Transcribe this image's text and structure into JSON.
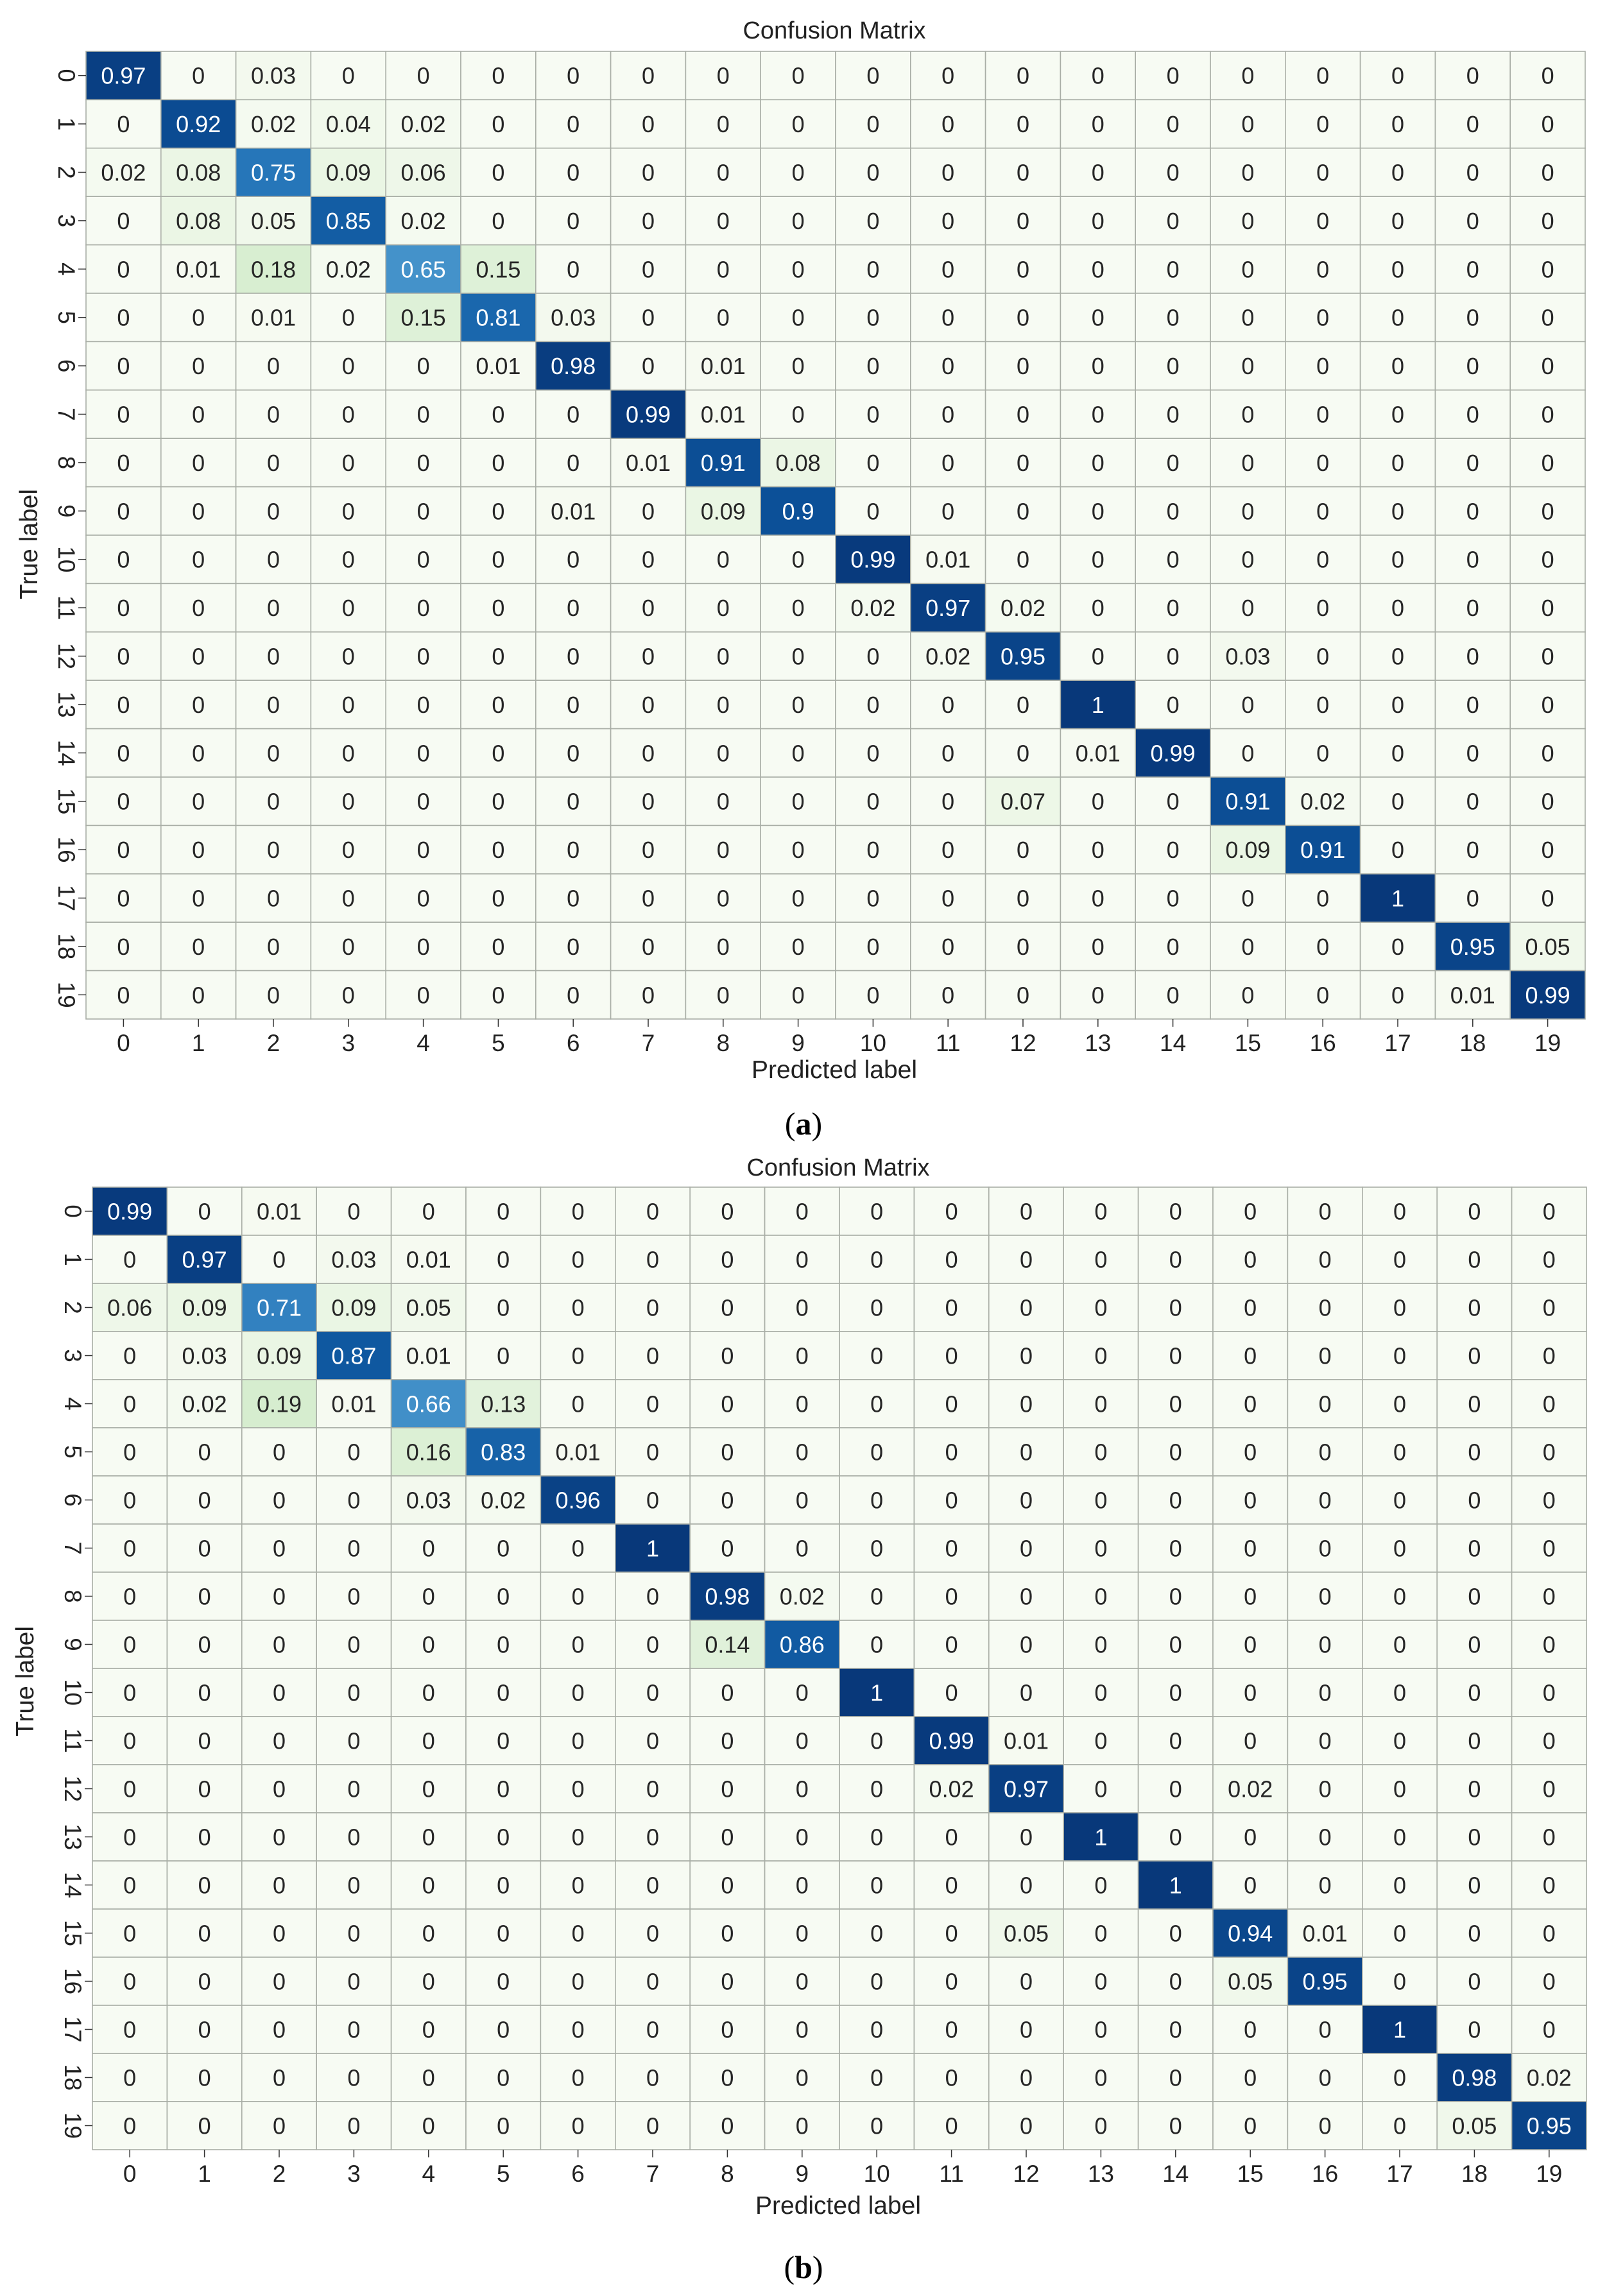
{
  "chart_data": [
    {
      "type": "heatmap",
      "title": "Confusion Matrix",
      "xlabel": "Predicted label",
      "ylabel": "True label",
      "panel_label": "a",
      "x_categories": [
        "0",
        "1",
        "2",
        "3",
        "4",
        "5",
        "6",
        "7",
        "8",
        "9",
        "10",
        "11",
        "12",
        "13",
        "14",
        "15",
        "16",
        "17",
        "18",
        "19"
      ],
      "y_categories": [
        "0",
        "1",
        "2",
        "3",
        "4",
        "5",
        "6",
        "7",
        "8",
        "9",
        "10",
        "11",
        "12",
        "13",
        "14",
        "15",
        "16",
        "17",
        "18",
        "19"
      ],
      "colormap": "Blues",
      "value_range": [
        0,
        1
      ],
      "matrix": [
        [
          "0.97",
          "0",
          "0.03",
          "0",
          "0",
          "0",
          "0",
          "0",
          "0",
          "0",
          "0",
          "0",
          "0",
          "0",
          "0",
          "0",
          "0",
          "0",
          "0",
          "0"
        ],
        [
          "0",
          "0.92",
          "0.02",
          "0.04",
          "0.02",
          "0",
          "0",
          "0",
          "0",
          "0",
          "0",
          "0",
          "0",
          "0",
          "0",
          "0",
          "0",
          "0",
          "0",
          "0"
        ],
        [
          "0.02",
          "0.08",
          "0.75",
          "0.09",
          "0.06",
          "0",
          "0",
          "0",
          "0",
          "0",
          "0",
          "0",
          "0",
          "0",
          "0",
          "0",
          "0",
          "0",
          "0",
          "0"
        ],
        [
          "0",
          "0.08",
          "0.05",
          "0.85",
          "0.02",
          "0",
          "0",
          "0",
          "0",
          "0",
          "0",
          "0",
          "0",
          "0",
          "0",
          "0",
          "0",
          "0",
          "0",
          "0"
        ],
        [
          "0",
          "0.01",
          "0.18",
          "0.02",
          "0.65",
          "0.15",
          "0",
          "0",
          "0",
          "0",
          "0",
          "0",
          "0",
          "0",
          "0",
          "0",
          "0",
          "0",
          "0",
          "0"
        ],
        [
          "0",
          "0",
          "0.01",
          "0",
          "0.15",
          "0.81",
          "0.03",
          "0",
          "0",
          "0",
          "0",
          "0",
          "0",
          "0",
          "0",
          "0",
          "0",
          "0",
          "0",
          "0"
        ],
        [
          "0",
          "0",
          "0",
          "0",
          "0",
          "0.01",
          "0.98",
          "0",
          "0.01",
          "0",
          "0",
          "0",
          "0",
          "0",
          "0",
          "0",
          "0",
          "0",
          "0",
          "0"
        ],
        [
          "0",
          "0",
          "0",
          "0",
          "0",
          "0",
          "0",
          "0.99",
          "0.01",
          "0",
          "0",
          "0",
          "0",
          "0",
          "0",
          "0",
          "0",
          "0",
          "0",
          "0"
        ],
        [
          "0",
          "0",
          "0",
          "0",
          "0",
          "0",
          "0",
          "0.01",
          "0.91",
          "0.08",
          "0",
          "0",
          "0",
          "0",
          "0",
          "0",
          "0",
          "0",
          "0",
          "0"
        ],
        [
          "0",
          "0",
          "0",
          "0",
          "0",
          "0",
          "0.01",
          "0",
          "0.09",
          "0.9",
          "0",
          "0",
          "0",
          "0",
          "0",
          "0",
          "0",
          "0",
          "0",
          "0"
        ],
        [
          "0",
          "0",
          "0",
          "0",
          "0",
          "0",
          "0",
          "0",
          "0",
          "0",
          "0.99",
          "0.01",
          "0",
          "0",
          "0",
          "0",
          "0",
          "0",
          "0",
          "0"
        ],
        [
          "0",
          "0",
          "0",
          "0",
          "0",
          "0",
          "0",
          "0",
          "0",
          "0",
          "0.02",
          "0.97",
          "0.02",
          "0",
          "0",
          "0",
          "0",
          "0",
          "0",
          "0"
        ],
        [
          "0",
          "0",
          "0",
          "0",
          "0",
          "0",
          "0",
          "0",
          "0",
          "0",
          "0",
          "0.02",
          "0.95",
          "0",
          "0",
          "0.03",
          "0",
          "0",
          "0",
          "0"
        ],
        [
          "0",
          "0",
          "0",
          "0",
          "0",
          "0",
          "0",
          "0",
          "0",
          "0",
          "0",
          "0",
          "0",
          "1",
          "0",
          "0",
          "0",
          "0",
          "0",
          "0"
        ],
        [
          "0",
          "0",
          "0",
          "0",
          "0",
          "0",
          "0",
          "0",
          "0",
          "0",
          "0",
          "0",
          "0",
          "0.01",
          "0.99",
          "0",
          "0",
          "0",
          "0",
          "0"
        ],
        [
          "0",
          "0",
          "0",
          "0",
          "0",
          "0",
          "0",
          "0",
          "0",
          "0",
          "0",
          "0",
          "0.07",
          "0",
          "0",
          "0.91",
          "0.02",
          "0",
          "0",
          "0"
        ],
        [
          "0",
          "0",
          "0",
          "0",
          "0",
          "0",
          "0",
          "0",
          "0",
          "0",
          "0",
          "0",
          "0",
          "0",
          "0",
          "0.09",
          "0.91",
          "0",
          "0",
          "0"
        ],
        [
          "0",
          "0",
          "0",
          "0",
          "0",
          "0",
          "0",
          "0",
          "0",
          "0",
          "0",
          "0",
          "0",
          "0",
          "0",
          "0",
          "0",
          "1",
          "0",
          "0"
        ],
        [
          "0",
          "0",
          "0",
          "0",
          "0",
          "0",
          "0",
          "0",
          "0",
          "0",
          "0",
          "0",
          "0",
          "0",
          "0",
          "0",
          "0",
          "0",
          "0.95",
          "0.05"
        ],
        [
          "0",
          "0",
          "0",
          "0",
          "0",
          "0",
          "0",
          "0",
          "0",
          "0",
          "0",
          "0",
          "0",
          "0",
          "0",
          "0",
          "0",
          "0",
          "0.01",
          "0.99"
        ]
      ]
    },
    {
      "type": "heatmap",
      "title": "Confusion Matrix",
      "xlabel": "Predicted label",
      "ylabel": "True label",
      "panel_label": "b",
      "x_categories": [
        "0",
        "1",
        "2",
        "3",
        "4",
        "5",
        "6",
        "7",
        "8",
        "9",
        "10",
        "11",
        "12",
        "13",
        "14",
        "15",
        "16",
        "17",
        "18",
        "19"
      ],
      "y_categories": [
        "0",
        "1",
        "2",
        "3",
        "4",
        "5",
        "6",
        "7",
        "8",
        "9",
        "10",
        "11",
        "12",
        "13",
        "14",
        "15",
        "16",
        "17",
        "18",
        "19"
      ],
      "colormap": "Blues",
      "value_range": [
        0,
        1
      ],
      "matrix": [
        [
          "0.99",
          "0",
          "0.01",
          "0",
          "0",
          "0",
          "0",
          "0",
          "0",
          "0",
          "0",
          "0",
          "0",
          "0",
          "0",
          "0",
          "0",
          "0",
          "0",
          "0"
        ],
        [
          "0",
          "0.97",
          "0",
          "0.03",
          "0.01",
          "0",
          "0",
          "0",
          "0",
          "0",
          "0",
          "0",
          "0",
          "0",
          "0",
          "0",
          "0",
          "0",
          "0",
          "0"
        ],
        [
          "0.06",
          "0.09",
          "0.71",
          "0.09",
          "0.05",
          "0",
          "0",
          "0",
          "0",
          "0",
          "0",
          "0",
          "0",
          "0",
          "0",
          "0",
          "0",
          "0",
          "0",
          "0"
        ],
        [
          "0",
          "0.03",
          "0.09",
          "0.87",
          "0.01",
          "0",
          "0",
          "0",
          "0",
          "0",
          "0",
          "0",
          "0",
          "0",
          "0",
          "0",
          "0",
          "0",
          "0",
          "0"
        ],
        [
          "0",
          "0.02",
          "0.19",
          "0.01",
          "0.66",
          "0.13",
          "0",
          "0",
          "0",
          "0",
          "0",
          "0",
          "0",
          "0",
          "0",
          "0",
          "0",
          "0",
          "0",
          "0"
        ],
        [
          "0",
          "0",
          "0",
          "0",
          "0.16",
          "0.83",
          "0.01",
          "0",
          "0",
          "0",
          "0",
          "0",
          "0",
          "0",
          "0",
          "0",
          "0",
          "0",
          "0",
          "0"
        ],
        [
          "0",
          "0",
          "0",
          "0",
          "0.03",
          "0.02",
          "0.96",
          "0",
          "0",
          "0",
          "0",
          "0",
          "0",
          "0",
          "0",
          "0",
          "0",
          "0",
          "0",
          "0"
        ],
        [
          "0",
          "0",
          "0",
          "0",
          "0",
          "0",
          "0",
          "1",
          "0",
          "0",
          "0",
          "0",
          "0",
          "0",
          "0",
          "0",
          "0",
          "0",
          "0",
          "0"
        ],
        [
          "0",
          "0",
          "0",
          "0",
          "0",
          "0",
          "0",
          "0",
          "0.98",
          "0.02",
          "0",
          "0",
          "0",
          "0",
          "0",
          "0",
          "0",
          "0",
          "0",
          "0"
        ],
        [
          "0",
          "0",
          "0",
          "0",
          "0",
          "0",
          "0",
          "0",
          "0.14",
          "0.86",
          "0",
          "0",
          "0",
          "0",
          "0",
          "0",
          "0",
          "0",
          "0",
          "0"
        ],
        [
          "0",
          "0",
          "0",
          "0",
          "0",
          "0",
          "0",
          "0",
          "0",
          "0",
          "1",
          "0",
          "0",
          "0",
          "0",
          "0",
          "0",
          "0",
          "0",
          "0"
        ],
        [
          "0",
          "0",
          "0",
          "0",
          "0",
          "0",
          "0",
          "0",
          "0",
          "0",
          "0",
          "0.99",
          "0.01",
          "0",
          "0",
          "0",
          "0",
          "0",
          "0",
          "0"
        ],
        [
          "0",
          "0",
          "0",
          "0",
          "0",
          "0",
          "0",
          "0",
          "0",
          "0",
          "0",
          "0.02",
          "0.97",
          "0",
          "0",
          "0.02",
          "0",
          "0",
          "0",
          "0"
        ],
        [
          "0",
          "0",
          "0",
          "0",
          "0",
          "0",
          "0",
          "0",
          "0",
          "0",
          "0",
          "0",
          "0",
          "1",
          "0",
          "0",
          "0",
          "0",
          "0",
          "0"
        ],
        [
          "0",
          "0",
          "0",
          "0",
          "0",
          "0",
          "0",
          "0",
          "0",
          "0",
          "0",
          "0",
          "0",
          "0",
          "1",
          "0",
          "0",
          "0",
          "0",
          "0"
        ],
        [
          "0",
          "0",
          "0",
          "0",
          "0",
          "0",
          "0",
          "0",
          "0",
          "0",
          "0",
          "0",
          "0.05",
          "0",
          "0",
          "0.94",
          "0.01",
          "0",
          "0",
          "0"
        ],
        [
          "0",
          "0",
          "0",
          "0",
          "0",
          "0",
          "0",
          "0",
          "0",
          "0",
          "0",
          "0",
          "0",
          "0",
          "0",
          "0.05",
          "0.95",
          "0",
          "0",
          "0"
        ],
        [
          "0",
          "0",
          "0",
          "0",
          "0",
          "0",
          "0",
          "0",
          "0",
          "0",
          "0",
          "0",
          "0",
          "0",
          "0",
          "0",
          "0",
          "1",
          "0",
          "0"
        ],
        [
          "0",
          "0",
          "0",
          "0",
          "0",
          "0",
          "0",
          "0",
          "0",
          "0",
          "0",
          "0",
          "0",
          "0",
          "0",
          "0",
          "0",
          "0",
          "0.98",
          "0.02"
        ],
        [
          "0",
          "0",
          "0",
          "0",
          "0",
          "0",
          "0",
          "0",
          "0",
          "0",
          "0",
          "0",
          "0",
          "0",
          "0",
          "0",
          "0",
          "0",
          "0.05",
          "0.95"
        ]
      ]
    }
  ]
}
